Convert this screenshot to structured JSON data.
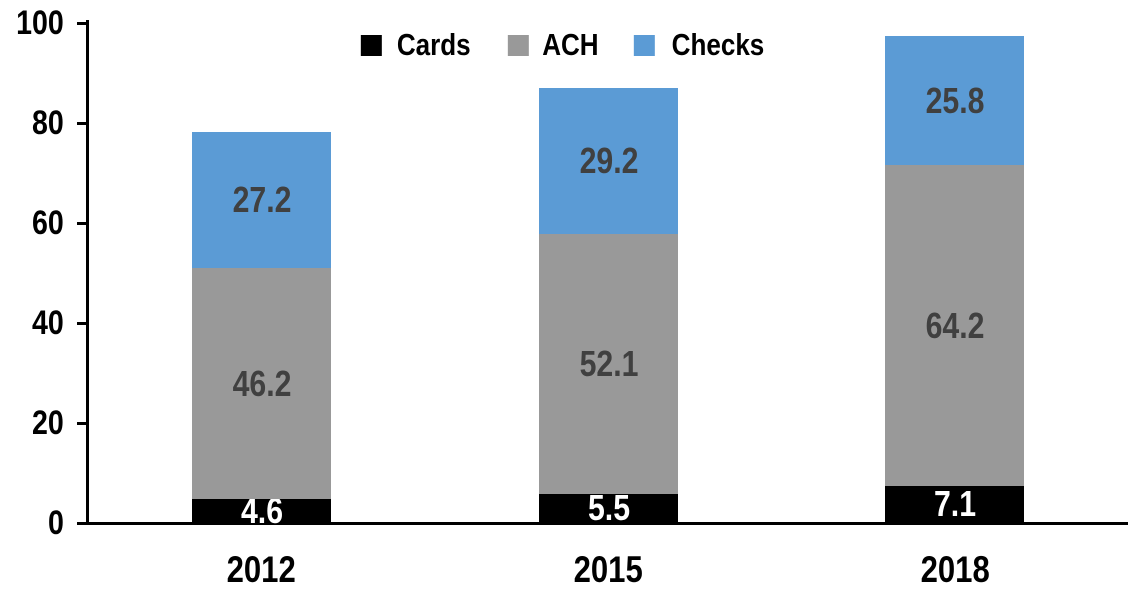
{
  "chart_data": {
    "type": "bar",
    "stacked": true,
    "title": "",
    "categories": [
      "2012",
      "2015",
      "2018"
    ],
    "series": [
      {
        "name": "Cards",
        "color": "#000000",
        "label_color": "#ffffff",
        "values": [
          4.6,
          5.5,
          7.1
        ]
      },
      {
        "name": "ACH",
        "color": "#999999",
        "label_color": "#404040",
        "values": [
          46.2,
          52.1,
          64.2
        ]
      },
      {
        "name": "Checks",
        "color": "#5b9bd5",
        "label_color": "#404040",
        "values": [
          27.2,
          29.2,
          25.8
        ]
      }
    ],
    "xlabel": "",
    "ylabel": "",
    "ylim": [
      0,
      100
    ],
    "yticks": [
      0,
      20,
      40,
      60,
      80,
      100
    ],
    "y_tick_labels": [
      "0",
      "20",
      "40",
      "60",
      "80",
      "100"
    ],
    "grid": false,
    "legend_position": "top",
    "legend_entries": [
      "Cards",
      "ACH",
      "Checks"
    ],
    "data_labels_shown": true,
    "axis_color": "#000000"
  }
}
